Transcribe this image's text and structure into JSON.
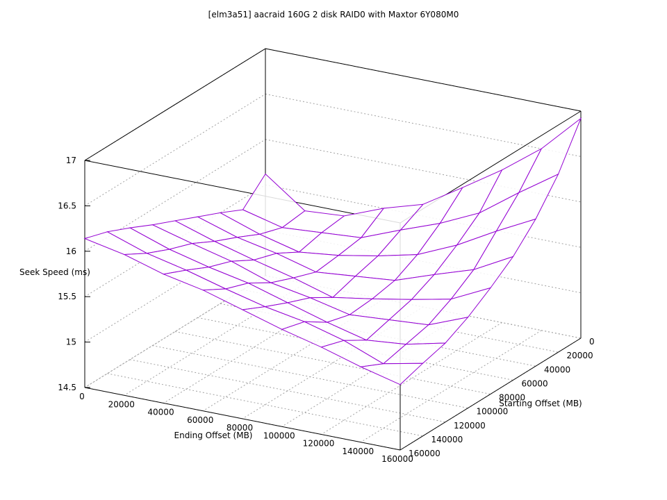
{
  "chart_data": {
    "type": "surface3d",
    "title": "[elm3a51] aacraid 160G 2 disk RAID0 with Maxtor 6Y080M0",
    "xlabel": "Ending Offset (MB)",
    "ylabel": "Starting Offset (MB)",
    "zlabel": "Seek Speed (ms)",
    "xlim": [
      0,
      160000
    ],
    "ylim": [
      0,
      160000
    ],
    "zlim": [
      14.5,
      17
    ],
    "xticks": [
      "0",
      "20000",
      "40000",
      "60000",
      "80000",
      "100000",
      "120000",
      "140000",
      "160000"
    ],
    "yticks": [
      "0",
      "20000",
      "40000",
      "60000",
      "80000",
      "100000",
      "120000",
      "140000",
      "160000"
    ],
    "zticks": [
      "14.5",
      "15",
      "15.5",
      "16",
      "16.5",
      "17"
    ],
    "grid": true,
    "colors": {
      "surface_top": "#9400d3",
      "surface_bottom": "#009e73",
      "grid": "#a0a0a0",
      "axes": "#000000"
    },
    "x": [
      0,
      20000,
      40000,
      60000,
      80000,
      100000,
      120000,
      140000,
      160000
    ],
    "y": [
      0,
      20000,
      40000,
      60000,
      80000,
      100000,
      120000,
      140000,
      160000
    ],
    "z_rows_by_starting_offset": [
      [
        15.62,
        15.3,
        15.33,
        15.5,
        15.63,
        15.9,
        16.18,
        16.5,
        16.92
      ],
      [
        15.38,
        15.27,
        15.3,
        15.33,
        15.5,
        15.66,
        15.86,
        16.17,
        16.46
      ],
      [
        15.5,
        15.35,
        15.24,
        15.29,
        15.37,
        15.47,
        15.66,
        15.9,
        16.12
      ],
      [
        15.61,
        15.47,
        15.38,
        15.26,
        15.3,
        15.34,
        15.49,
        15.63,
        15.86
      ],
      [
        15.72,
        15.58,
        15.46,
        15.35,
        15.22,
        15.29,
        15.37,
        15.46,
        15.67
      ],
      [
        15.83,
        15.71,
        15.6,
        15.45,
        15.37,
        15.27,
        15.3,
        15.33,
        15.5
      ],
      [
        15.95,
        15.8,
        15.69,
        15.6,
        15.47,
        15.34,
        15.23,
        15.27,
        15.37
      ],
      [
        16.06,
        15.91,
        15.81,
        15.69,
        15.58,
        15.5,
        15.38,
        15.21,
        15.3
      ],
      [
        16.14,
        16.05,
        15.92,
        15.83,
        15.7,
        15.57,
        15.46,
        15.33,
        15.22
      ]
    ]
  }
}
